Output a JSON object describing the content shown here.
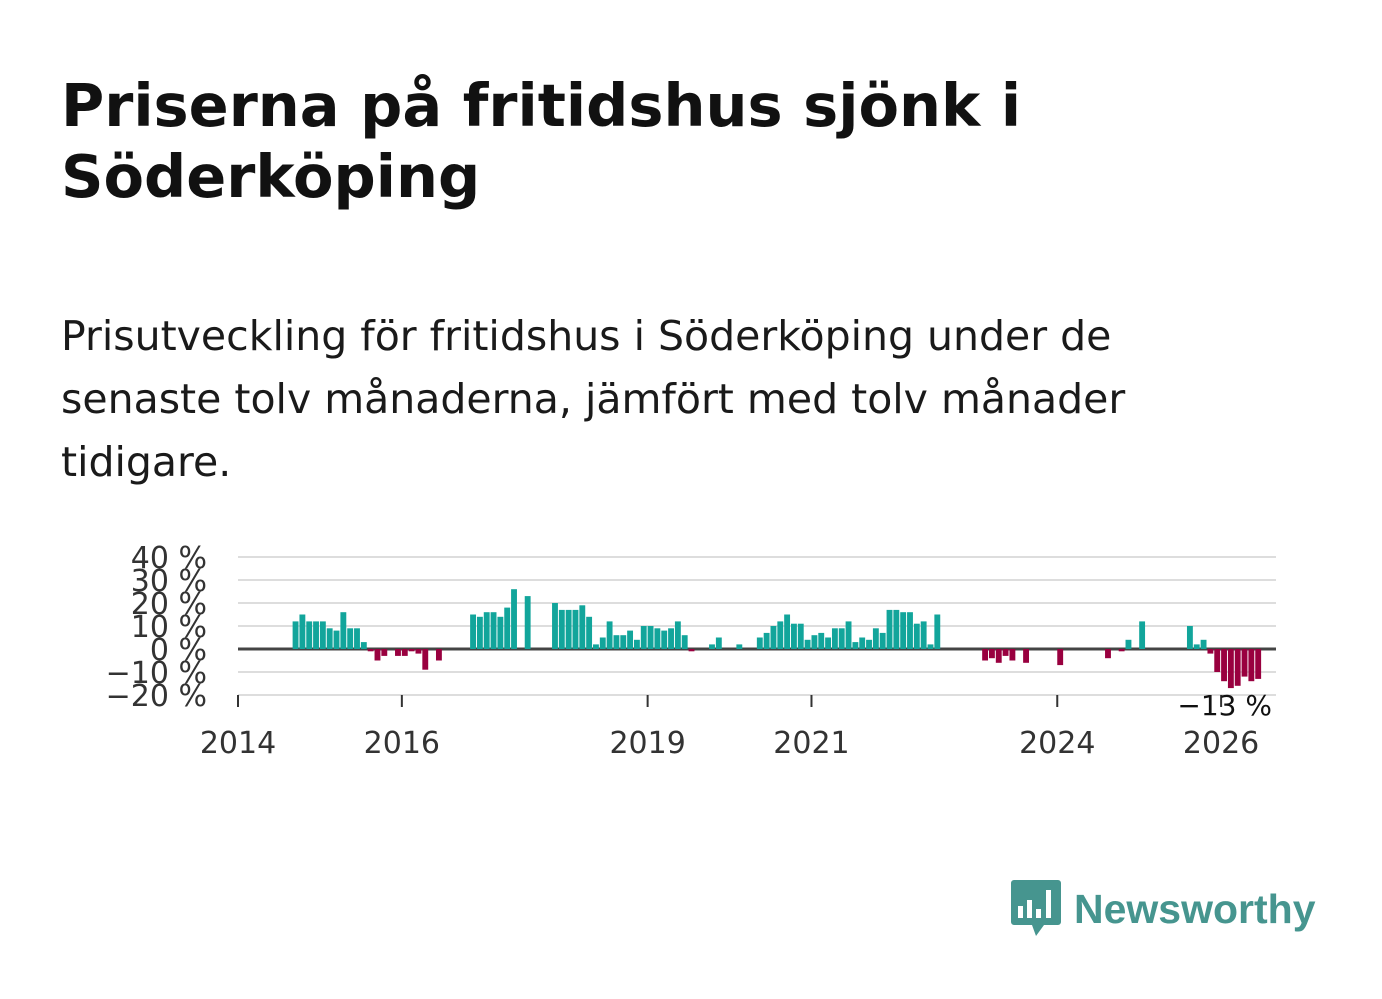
{
  "title": "Priserna på fritidshus sjönk i Söderköping",
  "subtitle": "Prisutveckling för fritidshus i Söderköping under de senaste tolv månaderna, jämfört med tolv månader tidigare.",
  "brand": {
    "name": "Newsworthy",
    "color": "#46958f",
    "icon": "newsworthy-chart-bubble-icon"
  },
  "colors": {
    "positive": "#12a59b",
    "negative": "#99003f",
    "grid": "#dddddd",
    "zero_line": "#444444"
  },
  "chart_data": {
    "type": "bar",
    "ylim": [
      -20,
      40
    ],
    "yticks": [
      40,
      30,
      20,
      10,
      0,
      -10,
      -20
    ],
    "ytick_labels": [
      "40 %",
      "30 %",
      "20 %",
      "10 %",
      "0 %",
      "−10 %",
      "−20 %"
    ],
    "xlim": [
      2014.0,
      2026.67
    ],
    "xticks": [
      2014,
      2016,
      2019,
      2021,
      2024,
      2026
    ],
    "xtick_labels": [
      "2014",
      "2016",
      "2019",
      "2021",
      "2024",
      "2026"
    ],
    "end_label": "−13 %",
    "series": [
      {
        "start": "2014-01",
        "values": [
          0,
          0,
          0,
          0,
          0,
          0,
          0,
          0,
          12,
          15,
          12,
          12,
          12,
          9,
          8,
          16,
          9,
          9,
          3,
          -1,
          -5,
          -3,
          0,
          -3,
          -3,
          -1,
          -2,
          -9,
          0,
          -5,
          0,
          0,
          0,
          0,
          15,
          14,
          16,
          16,
          14,
          18,
          26,
          0,
          23,
          0,
          0,
          0,
          20,
          17,
          17,
          17,
          19,
          14,
          2,
          5,
          12,
          6,
          6,
          8,
          4,
          10,
          10,
          9,
          8,
          9,
          12,
          6,
          -1,
          0,
          0,
          2,
          5,
          0,
          0,
          2,
          0,
          0,
          5,
          7,
          10,
          12,
          15,
          11,
          11,
          4,
          6,
          7,
          5,
          9,
          9,
          12,
          3,
          5,
          4,
          9,
          7,
          17,
          17,
          16,
          16,
          11,
          12,
          2,
          15,
          0,
          0,
          0,
          0,
          0,
          0,
          -5,
          -4,
          -6,
          -3,
          -5,
          0,
          -6,
          0,
          0,
          0,
          0,
          -7,
          0,
          0,
          0,
          0,
          0,
          0,
          -4,
          0,
          -1,
          4,
          0,
          12,
          0,
          0,
          0,
          0,
          0,
          0,
          10,
          2,
          4,
          -2,
          -10,
          -14,
          -17,
          -16,
          -12,
          -14,
          -13
        ]
      }
    ]
  }
}
